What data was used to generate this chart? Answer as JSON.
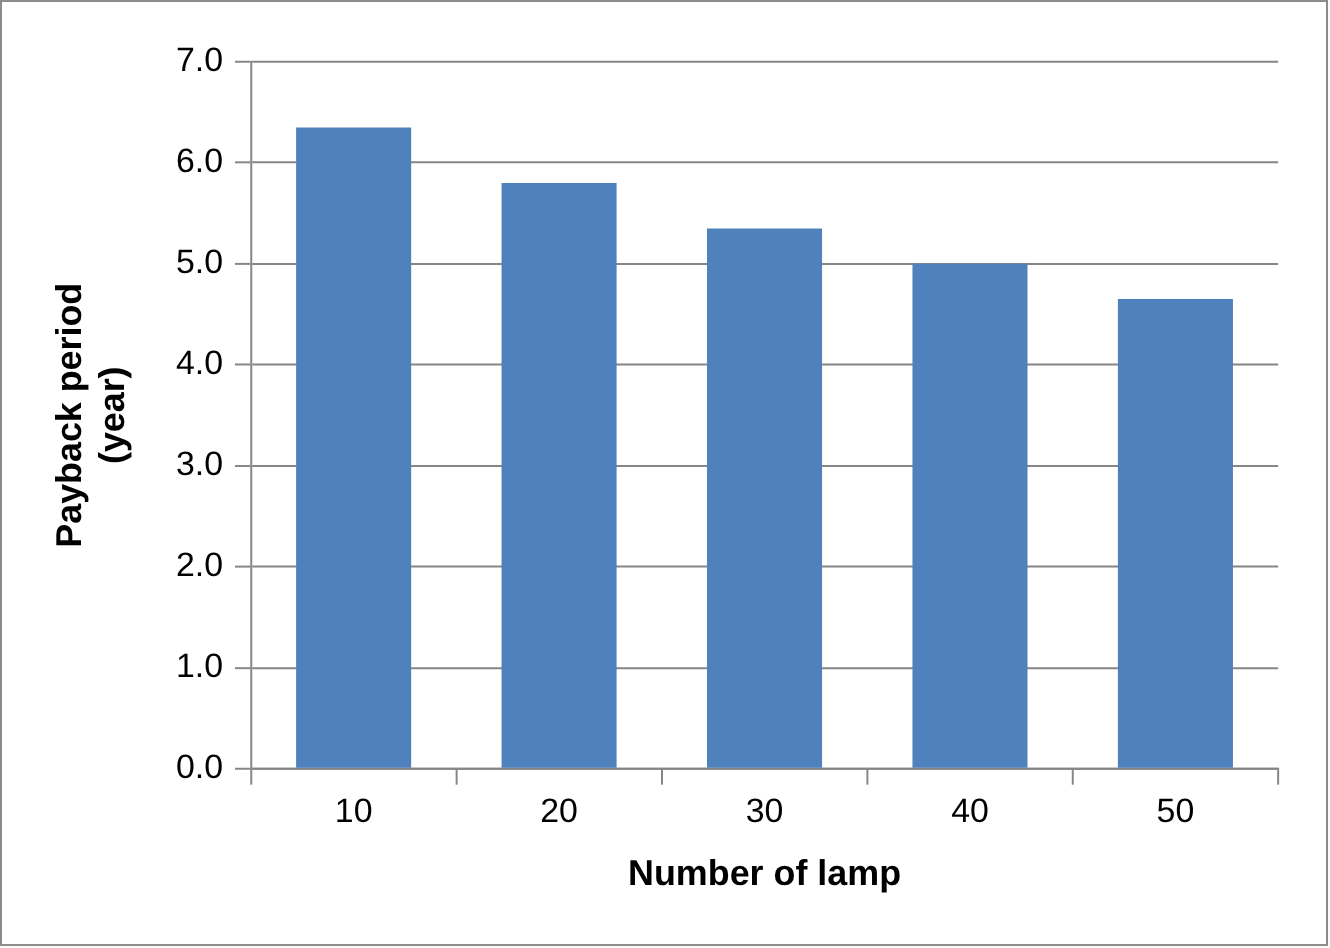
{
  "chart_data": {
    "type": "bar",
    "xlabel": "Number of lamp",
    "ylabel": "Payback period\n(year)",
    "categories": [
      "10",
      "20",
      "30",
      "40",
      "50"
    ],
    "values": [
      6.35,
      5.8,
      5.35,
      5.0,
      4.65
    ],
    "color": "#4f81bd",
    "ylim": [
      0,
      7
    ],
    "yticks": [
      {
        "value": 0,
        "label": "0.0"
      },
      {
        "value": 1,
        "label": "1.0"
      },
      {
        "value": 2,
        "label": "2.0"
      },
      {
        "value": 3,
        "label": "3.0"
      },
      {
        "value": 4,
        "label": "4.0"
      },
      {
        "value": 5,
        "label": "5.0"
      },
      {
        "value": 6,
        "label": "6.0"
      },
      {
        "value": 7,
        "label": "7.0"
      }
    ],
    "grid": "y",
    "legend": false
  }
}
